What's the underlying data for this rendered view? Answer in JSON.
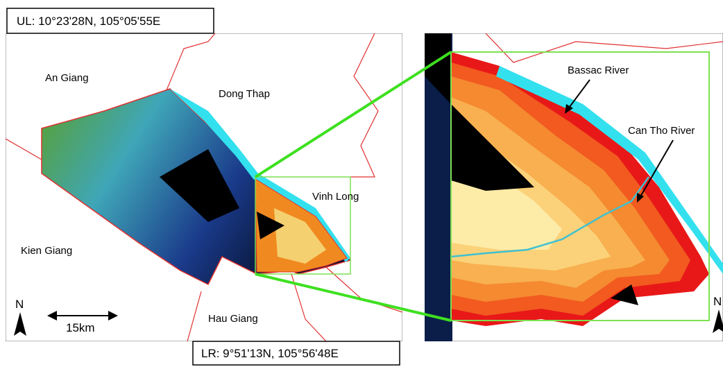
{
  "corners": {
    "upper_left": "UL: 10°23'28N, 105°05'55E",
    "lower_right": "LR: 9°51'13N, 105°56'48E"
  },
  "left_map": {
    "provinces": [
      "An Giang",
      "Dong Thap",
      "Vinh Long",
      "Kien Giang",
      "Hau Giang"
    ],
    "scale": "15km",
    "north": "N"
  },
  "right_map": {
    "rivers": [
      "Bassac River",
      "Can Tho River"
    ],
    "north": "N"
  }
}
